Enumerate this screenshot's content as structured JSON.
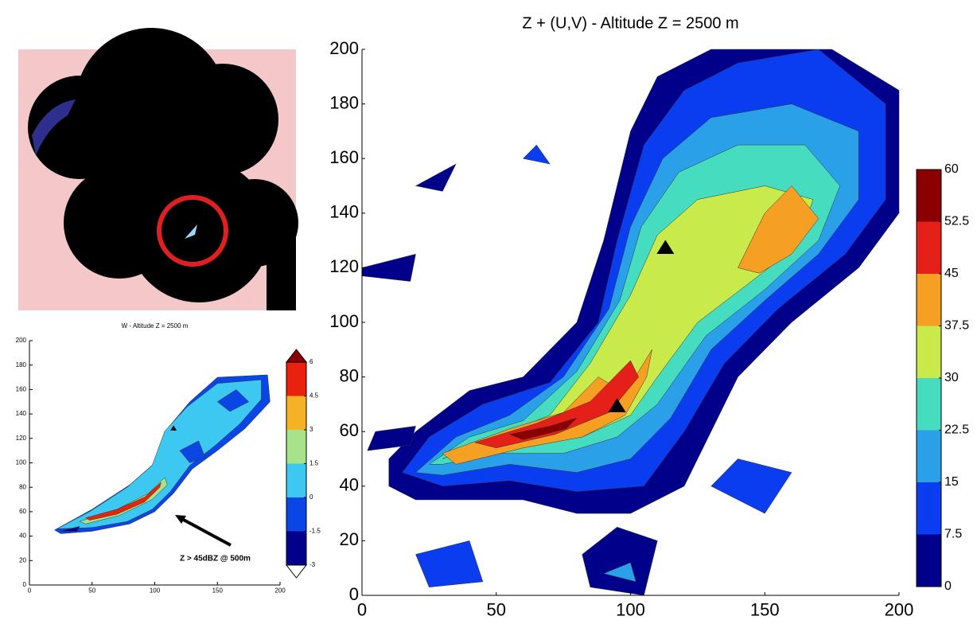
{
  "chart_data": [
    {
      "type": "contour",
      "title": "W - Altitude Z = 2500 m",
      "xlim": [
        0,
        200
      ],
      "ylim": [
        0,
        200
      ],
      "xticks": [
        0,
        50,
        100,
        150,
        200
      ],
      "yticks": [
        0,
        20,
        40,
        60,
        80,
        100,
        120,
        140,
        160,
        180,
        200
      ],
      "colorbar": {
        "ticks": [
          -3,
          -1.5,
          0,
          1.5,
          3,
          4.5,
          6
        ],
        "colors": [
          "#00008b",
          "#0a46e6",
          "#3cc8f0",
          "#a6e38a",
          "#f5b224",
          "#e8220e"
        ]
      },
      "annotation": "Z > 45dBZ @ 500m"
    },
    {
      "type": "contour",
      "title": "Z + (U,V) - Altitude Z = 2500 m",
      "xlim": [
        0,
        200
      ],
      "ylim": [
        0,
        200
      ],
      "xticks": [
        0,
        50,
        100,
        150,
        200
      ],
      "yticks": [
        0,
        20,
        40,
        60,
        80,
        100,
        120,
        140,
        160,
        180,
        200
      ],
      "colorbar": {
        "ticks": [
          0,
          7.5,
          15,
          22.5,
          30,
          37.5,
          45,
          52.5,
          60
        ],
        "colors": [
          "#00008b",
          "#0a3cf0",
          "#2aa0e8",
          "#46dcc0",
          "#c8ea4a",
          "#f5a023",
          "#e42018",
          "#8a0000"
        ]
      }
    }
  ]
}
